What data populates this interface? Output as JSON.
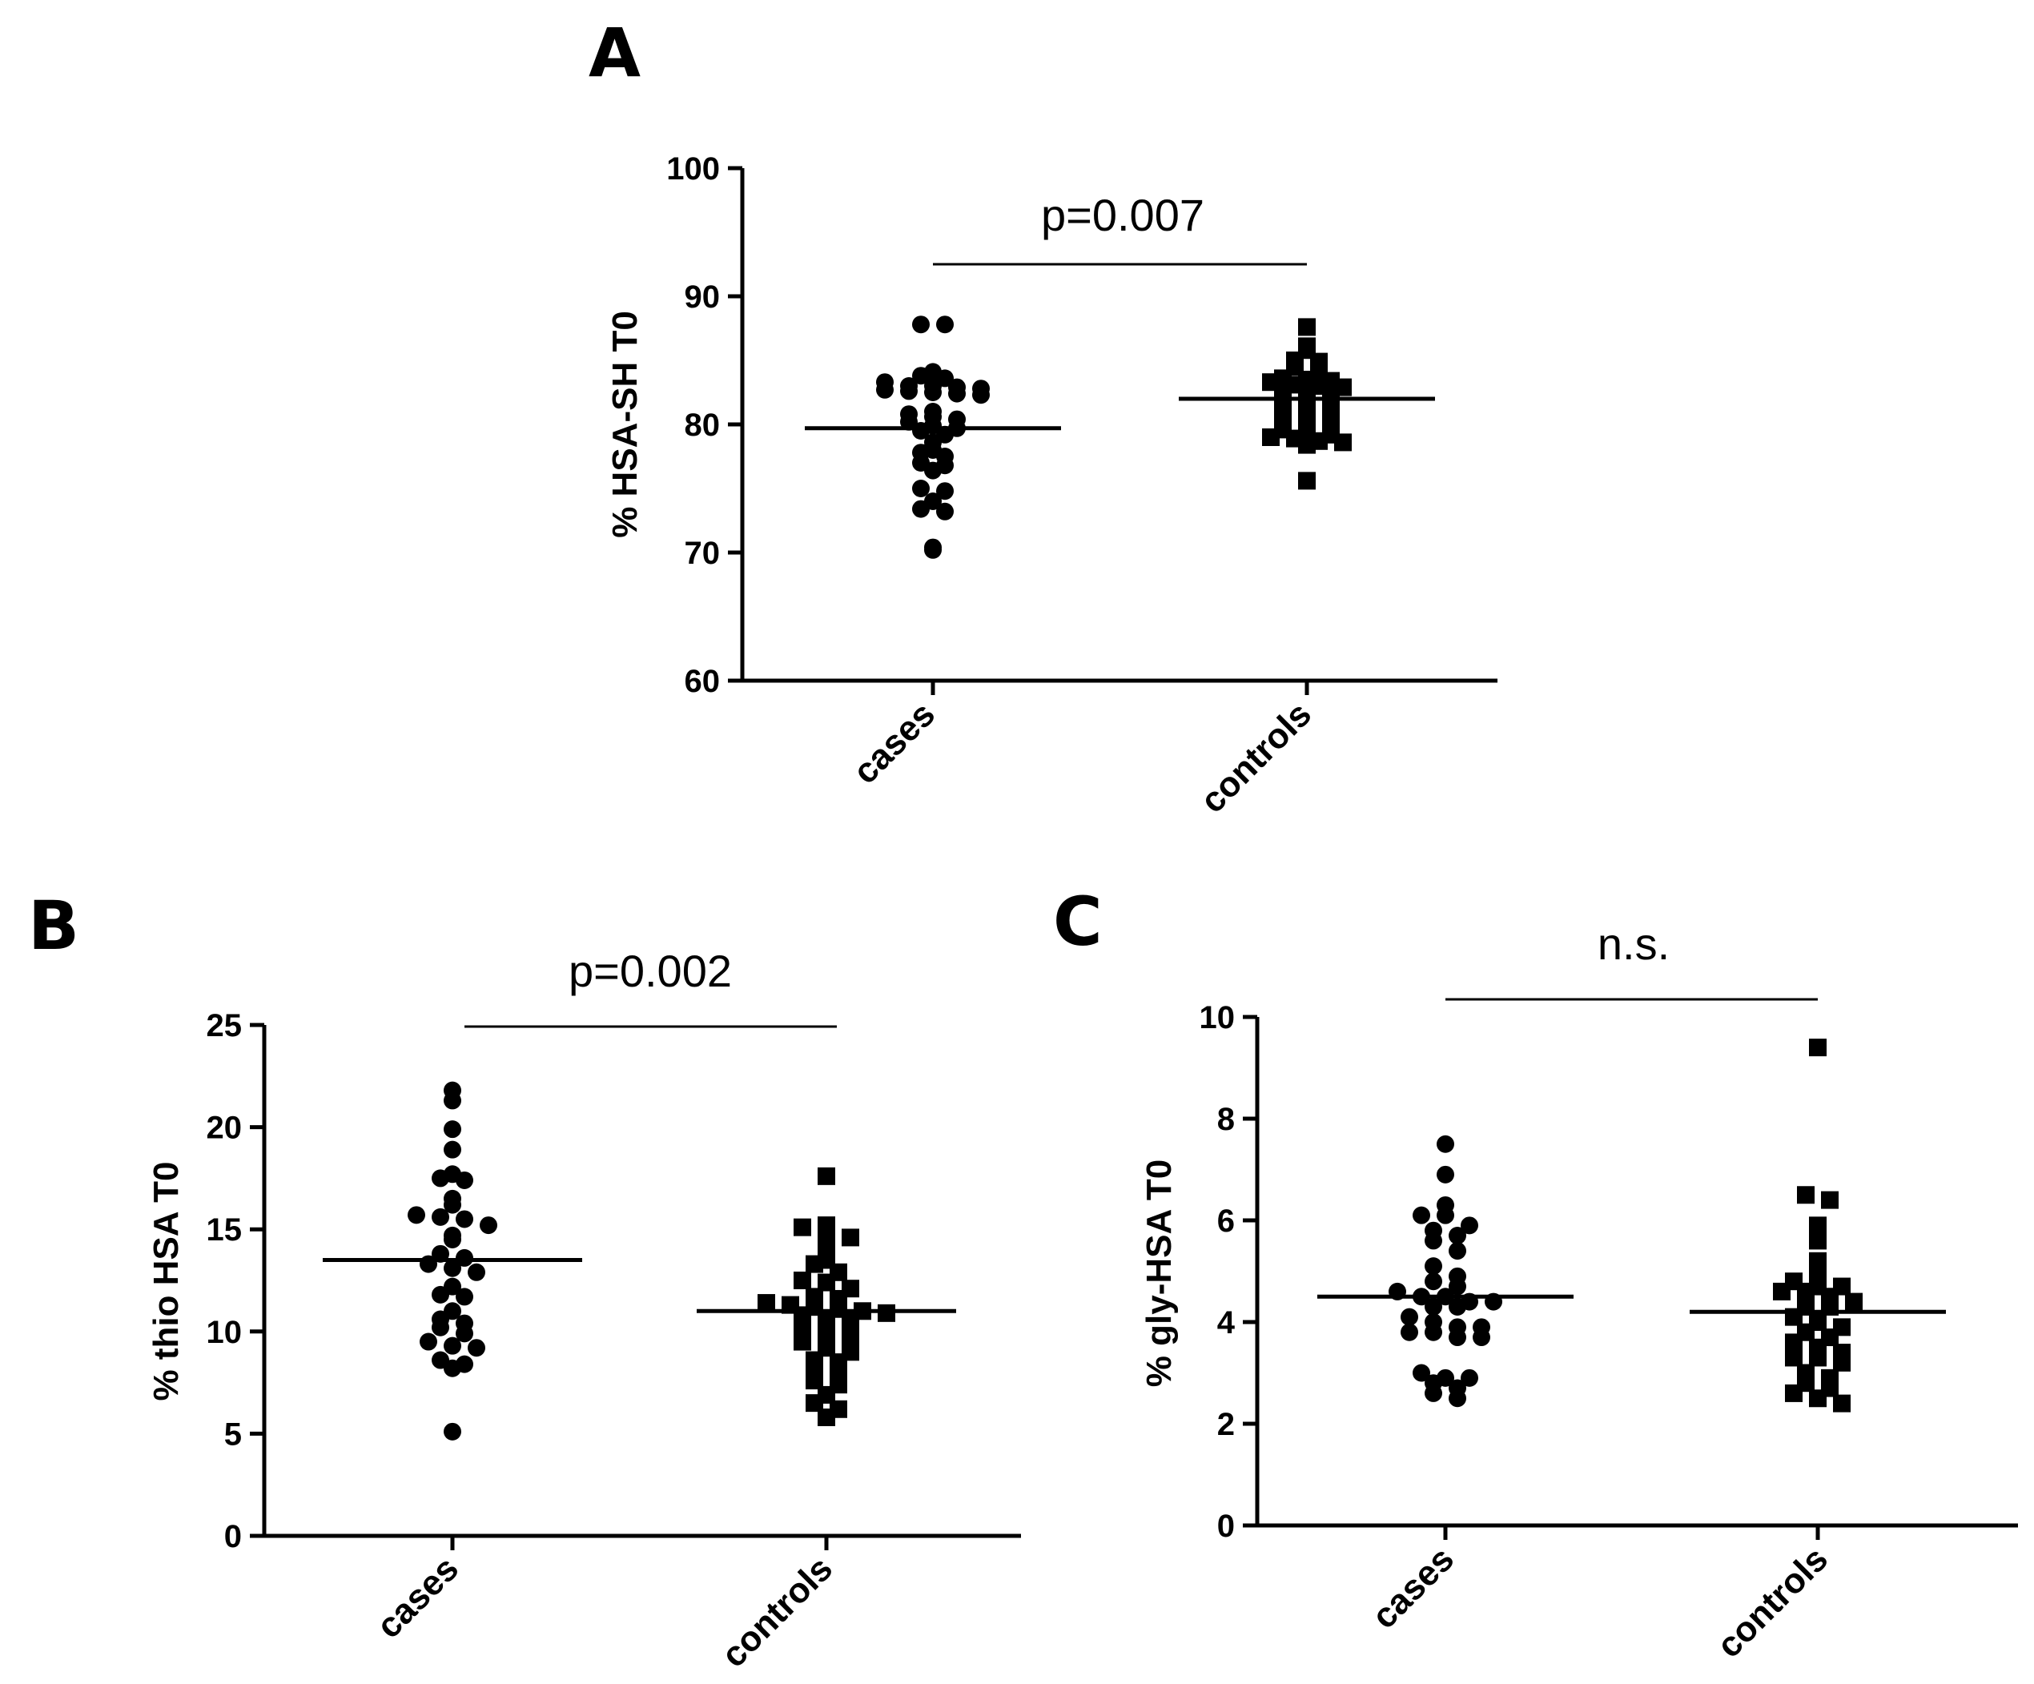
{
  "chart_data": [
    {
      "type": "scatter",
      "panel": "A",
      "ylabel": "% HSA-SH T0",
      "ylim": [
        60,
        100
      ],
      "yticks": [
        60,
        70,
        80,
        90,
        100
      ],
      "categories": [
        "cases",
        "controls"
      ],
      "annotation": "p=0.007",
      "series": [
        {
          "name": "cases",
          "marker": "circle",
          "mean": 79.7,
          "values": [
            87.8,
            87.8,
            84.1,
            83.8,
            83.6,
            83.3,
            83.0,
            83.0,
            82.9,
            82.8,
            82.7,
            82.6,
            82.5,
            82.4,
            82.3,
            81.0,
            80.8,
            80.6,
            80.4,
            80.2,
            79.9,
            79.7,
            79.5,
            79.2,
            78.6,
            78.0,
            77.8,
            77.5,
            77.0,
            76.8,
            76.4,
            75.0,
            74.8,
            74.0,
            73.4,
            73.2,
            70.4,
            70.2
          ]
        },
        {
          "name": "controls",
          "marker": "square",
          "mean": 82.0,
          "values": [
            87.6,
            86.1,
            85.8,
            85.0,
            84.9,
            84.5,
            84.3,
            83.6,
            83.5,
            83.4,
            83.3,
            83.1,
            83.0,
            82.9,
            82.7,
            82.5,
            82.3,
            82.1,
            81.9,
            81.6,
            81.4,
            81.2,
            81.0,
            80.9,
            80.5,
            80.3,
            79.8,
            79.6,
            79.5,
            79.2,
            79.0,
            78.9,
            78.7,
            78.6,
            78.4,
            75.6
          ]
        }
      ]
    },
    {
      "type": "scatter",
      "panel": "B",
      "ylabel": "% thio HSA T0",
      "ylim": [
        0,
        25
      ],
      "yticks": [
        0,
        5,
        10,
        15,
        20,
        25
      ],
      "categories": [
        "cases",
        "controls"
      ],
      "annotation": "p=0.002",
      "series": [
        {
          "name": "cases",
          "marker": "circle",
          "mean": 13.5,
          "values": [
            21.8,
            21.3,
            19.9,
            18.9,
            17.7,
            17.5,
            17.4,
            16.5,
            16.2,
            15.7,
            15.6,
            15.5,
            15.2,
            14.7,
            14.5,
            13.8,
            13.6,
            13.3,
            13.1,
            12.9,
            12.2,
            11.8,
            11.7,
            11.0,
            10.6,
            10.4,
            10.2,
            9.9,
            9.5,
            9.3,
            9.2,
            8.6,
            8.4,
            8.2,
            5.1
          ]
        },
        {
          "name": "controls",
          "marker": "square",
          "mean": 11.0,
          "values": [
            17.6,
            15.2,
            15.1,
            14.9,
            14.6,
            14.3,
            13.5,
            13.3,
            12.9,
            12.5,
            12.4,
            12.1,
            11.7,
            11.6,
            11.4,
            11.3,
            11.2,
            11.1,
            11.0,
            10.9,
            10.8,
            10.6,
            10.5,
            10.2,
            10.0,
            9.8,
            9.5,
            9.2,
            9.0,
            8.6,
            8.5,
            8.2,
            8.0,
            7.6,
            7.4,
            6.9,
            6.5,
            6.2,
            5.8
          ]
        }
      ]
    },
    {
      "type": "scatter",
      "panel": "C",
      "ylabel": "% gly-HSA T0",
      "ylim": [
        0,
        10
      ],
      "yticks": [
        0,
        2,
        4,
        6,
        8,
        10
      ],
      "categories": [
        "cases",
        "controls"
      ],
      "annotation": "n.s.",
      "series": [
        {
          "name": "cases",
          "marker": "circle",
          "mean": 4.5,
          "values": [
            7.5,
            6.9,
            6.3,
            6.1,
            6.1,
            5.9,
            5.8,
            5.7,
            5.6,
            5.4,
            5.1,
            4.9,
            4.8,
            4.7,
            4.6,
            4.5,
            4.5,
            4.4,
            4.4,
            4.3,
            4.3,
            4.1,
            4.0,
            3.9,
            3.9,
            3.8,
            3.8,
            3.7,
            3.7,
            3.0,
            2.9,
            2.9,
            2.8,
            2.7,
            2.6,
            2.5
          ]
        },
        {
          "name": "controls",
          "marker": "square",
          "mean": 4.2,
          "values": [
            9.4,
            6.5,
            6.4,
            5.9,
            5.6,
            5.2,
            4.9,
            4.8,
            4.7,
            4.7,
            4.6,
            4.6,
            4.5,
            4.4,
            4.3,
            4.3,
            4.1,
            4.0,
            3.9,
            3.8,
            3.7,
            3.6,
            3.5,
            3.4,
            3.3,
            3.3,
            3.2,
            3.0,
            2.9,
            2.8,
            2.7,
            2.6,
            2.5,
            2.4
          ]
        }
      ]
    }
  ]
}
